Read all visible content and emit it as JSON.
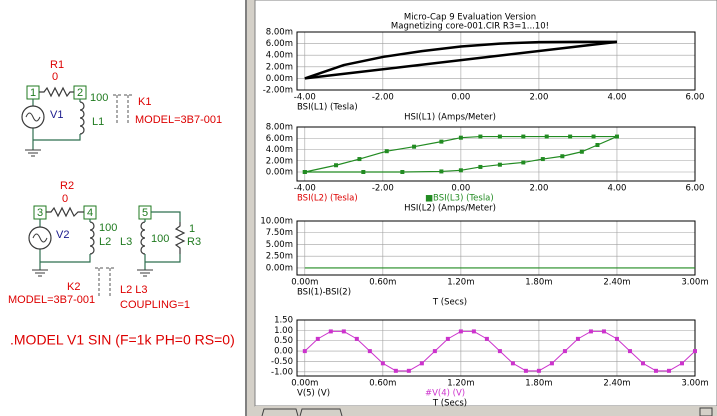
{
  "schematic": {
    "r1_name": "R1",
    "r1_value": "0",
    "node1": "1",
    "node2": "2",
    "l1_value": "100",
    "l1_name": "L1",
    "v1": "V1",
    "k1_name": "K1",
    "k1_model": "MODEL=3B7-001",
    "r2_name": "R2",
    "r2_value": "0",
    "node3": "3",
    "node4": "4",
    "l2_value": "100",
    "l2_name": "L2",
    "v2": "V2",
    "node5": "5",
    "l3_name": "L3",
    "l3_value": "100",
    "r3_value": "1",
    "r3_name": "R3",
    "k2_name": "K2",
    "k2_model": "MODEL=3B7-001",
    "k2_inductors": "L2 L3",
    "k2_coupling": "COUPLING=1",
    "model_line": ".MODEL V1 SIN (F=1k PH=0 RS=0)"
  },
  "chart_data": [
    {
      "type": "line",
      "title": "Micro-Cap 9 Evaluation Version",
      "subtitle": "Magnetizing core-001.CIR R3=1...10!",
      "trace_labels": [
        {
          "text": "BSI(L1) (Tesla)",
          "color": "#000000"
        }
      ],
      "xlabel": "HSI(L1) (Amps/Meter)",
      "xlim": [
        -4.2,
        6
      ],
      "ylim": [
        -2,
        8
      ],
      "grid": true,
      "xticks": [
        {
          "value": -4,
          "label": "-4.00"
        },
        {
          "value": -2,
          "label": "-2.00"
        },
        {
          "value": 0,
          "label": "0.00"
        },
        {
          "value": 2,
          "label": "2.00"
        },
        {
          "value": 4,
          "label": "4.00"
        },
        {
          "value": 6,
          "label": "6.00"
        }
      ],
      "yticks": [
        {
          "value": -2,
          "label": "-2.00m"
        },
        {
          "value": 0,
          "label": "0.00m"
        },
        {
          "value": 2,
          "label": "2.00m"
        },
        {
          "value": 4,
          "label": "4.00m"
        },
        {
          "value": 6,
          "label": "6.00m"
        },
        {
          "value": 8,
          "label": "8.00m"
        }
      ],
      "series": [
        {
          "color": "#000000",
          "width": 2.5,
          "markers": false,
          "x": [
            -4,
            -3,
            -2,
            -1,
            0,
            1,
            2,
            3,
            4
          ],
          "values": [
            0,
            2.3,
            3.7,
            4.7,
            5.5,
            6.0,
            6.25,
            6.3,
            6.3
          ]
        },
        {
          "color": "#000000",
          "width": 2.5,
          "markers": false,
          "x": [
            -4,
            4
          ],
          "values": [
            0,
            6.3
          ]
        }
      ]
    },
    {
      "type": "line",
      "trace_labels": [
        {
          "text": "BSI(L2) (Tesla)",
          "color": "#dd0000"
        },
        {
          "text": "■BSI(L3) (Tesla)",
          "color": "#228b22"
        }
      ],
      "xlabel": "HSI(L2) (Amps/Meter)",
      "xlim": [
        -4.2,
        6
      ],
      "ylim": [
        -1.6,
        8
      ],
      "grid": true,
      "xticks": [
        {
          "value": -4,
          "label": "-4.00"
        },
        {
          "value": -2,
          "label": "-2.00"
        },
        {
          "value": 0,
          "label": "0.00"
        },
        {
          "value": 2,
          "label": "2.00"
        },
        {
          "value": 4,
          "label": "4.00"
        },
        {
          "value": 6,
          "label": "6.00"
        }
      ],
      "yticks": [
        {
          "value": 0,
          "label": "0.00m"
        },
        {
          "value": 2,
          "label": "2.00m"
        },
        {
          "value": 4,
          "label": "4.00m"
        },
        {
          "value": 6,
          "label": "6.00m"
        },
        {
          "value": 8,
          "label": "8.00m"
        }
      ],
      "series": [
        {
          "color": "#228b22",
          "width": 1.2,
          "markers": true,
          "x": [
            -4,
            -3.2,
            -2.6,
            -1.9,
            -1.2,
            -0.5,
            0,
            0.5,
            1,
            1.6,
            2.2,
            2.8,
            3.4,
            4,
            3.5,
            3.1,
            2.6,
            2.1,
            1.6,
            1,
            0.5,
            0,
            -0.5,
            -1.5,
            -2.5,
            -4
          ],
          "values": [
            0,
            1.2,
            2.3,
            3.7,
            4.5,
            5.4,
            6.1,
            6.3,
            6.3,
            6.3,
            6.3,
            6.3,
            6.3,
            6.3,
            4.8,
            3.6,
            2.8,
            2.3,
            1.7,
            1.3,
            0.9,
            0.3,
            0.1,
            0,
            0,
            0
          ]
        }
      ]
    },
    {
      "type": "line",
      "trace_labels": [
        {
          "text": "BSI(1)-BSI(2)",
          "color": "#000000"
        }
      ],
      "xlabel": "T (Secs)",
      "xlim": [
        -0.06,
        3
      ],
      "ylim": [
        -1.5,
        10
      ],
      "grid": true,
      "xticks": [
        {
          "value": 0,
          "label": "0.00m"
        },
        {
          "value": 0.6,
          "label": "0.60m"
        },
        {
          "value": 1.2,
          "label": "1.20m"
        },
        {
          "value": 1.8,
          "label": "1.80m"
        },
        {
          "value": 2.4,
          "label": "2.40m"
        },
        {
          "value": 3,
          "label": "3.00m"
        }
      ],
      "yticks": [
        {
          "value": 0,
          "label": "0.00m"
        },
        {
          "value": 2.5,
          "label": "2.50m"
        },
        {
          "value": 5,
          "label": "5.00m"
        },
        {
          "value": 7.5,
          "label": "7.50m"
        },
        {
          "value": 10,
          "label": "10.00m"
        }
      ],
      "series": [
        {
          "color": "#228b22",
          "width": 1.2,
          "markers": false,
          "x": [
            0,
            3
          ],
          "values": [
            0,
            0
          ]
        }
      ]
    },
    {
      "type": "line",
      "trace_labels": [
        {
          "text": "V(5) (V)",
          "color": "#000000"
        },
        {
          "text": "#V(4) (V)",
          "color": "#cc33cc"
        }
      ],
      "xlabel": "T (Secs)",
      "xlim": [
        -0.06,
        3
      ],
      "ylim": [
        -1.2,
        1.5
      ],
      "grid": true,
      "xticks": [
        {
          "value": 0,
          "label": "0.00m"
        },
        {
          "value": 0.6,
          "label": "0.60m"
        },
        {
          "value": 1.2,
          "label": "1.20m"
        },
        {
          "value": 1.8,
          "label": "1.80m"
        },
        {
          "value": 2.4,
          "label": "2.40m"
        },
        {
          "value": 3,
          "label": "3.00m"
        }
      ],
      "yticks": [
        {
          "value": -1,
          "label": "-1.00"
        },
        {
          "value": -0.5,
          "label": "-0.50"
        },
        {
          "value": 0,
          "label": "0.00"
        },
        {
          "value": 0.5,
          "label": "0.50"
        },
        {
          "value": 1,
          "label": "1.00"
        },
        {
          "value": 1.5,
          "label": "1.50"
        }
      ],
      "series": [
        {
          "color": "#cc33cc",
          "width": 1,
          "markers": true,
          "x": [
            0,
            0.1,
            0.2,
            0.3,
            0.4,
            0.5,
            0.6,
            0.7,
            0.8,
            0.9,
            1,
            1.1,
            1.2,
            1.3,
            1.4,
            1.5,
            1.6,
            1.7,
            1.8,
            1.9,
            2,
            2.1,
            2.2,
            2.3,
            2.4,
            2.5,
            2.6,
            2.7,
            2.8,
            2.9,
            3
          ],
          "values": [
            0,
            0.59,
            0.95,
            0.95,
            0.59,
            0,
            -0.59,
            -0.95,
            -0.95,
            -0.59,
            0,
            0.59,
            0.95,
            0.95,
            0.59,
            0,
            -0.59,
            -0.95,
            -0.95,
            -0.59,
            0,
            0.59,
            0.95,
            0.95,
            0.59,
            0,
            -0.59,
            -0.95,
            -0.95,
            -0.59,
            0
          ]
        }
      ]
    }
  ]
}
